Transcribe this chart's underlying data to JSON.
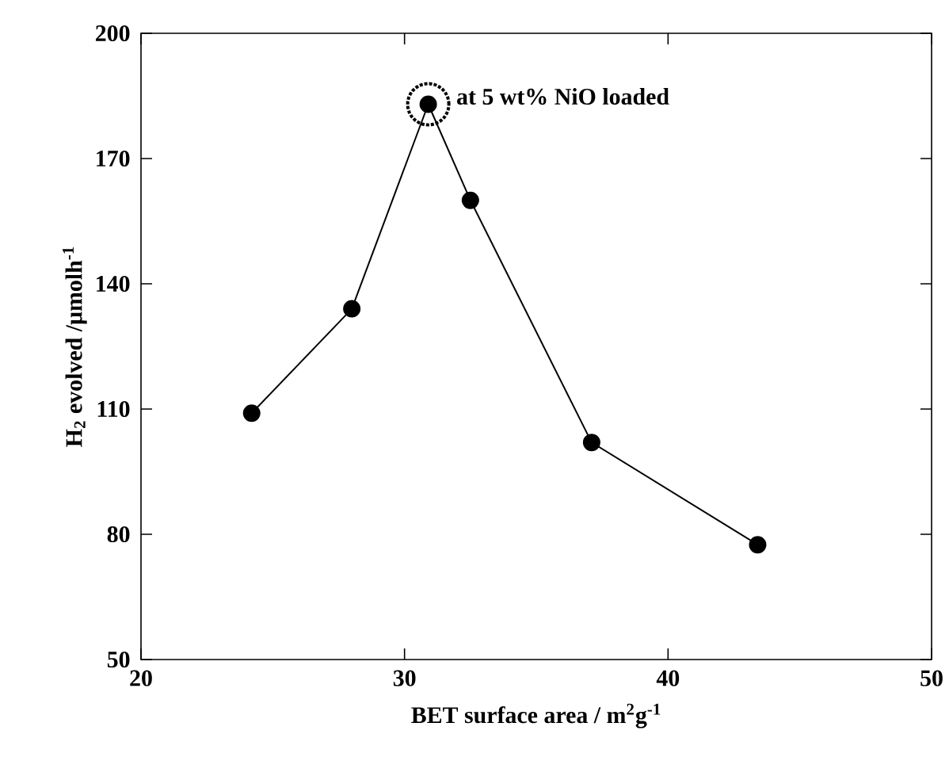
{
  "chart_data": {
    "type": "line",
    "xlabel": "BET surface area / m$^{2}$g$^{-1}$",
    "ylabel": "H$_{2}$ evolved /μmolh$^{-1}$",
    "x": [
      24.2,
      28.0,
      30.9,
      32.5,
      37.1,
      43.4
    ],
    "series": [
      {
        "color": "#000000",
        "values": [
          109,
          134,
          183,
          160,
          102,
          77.5
        ]
      }
    ],
    "xlim": [
      20,
      50
    ],
    "ylim": [
      50,
      200
    ],
    "xticks": [
      20,
      30,
      40,
      50
    ],
    "yticks": [
      50,
      80,
      110,
      140,
      170,
      200
    ],
    "marker": "circle",
    "line_style": "solid",
    "grid": false,
    "annotations": [
      {
        "text": "at 5 wt% NiO loaded",
        "x": 30.9,
        "y": 183
      }
    ]
  }
}
